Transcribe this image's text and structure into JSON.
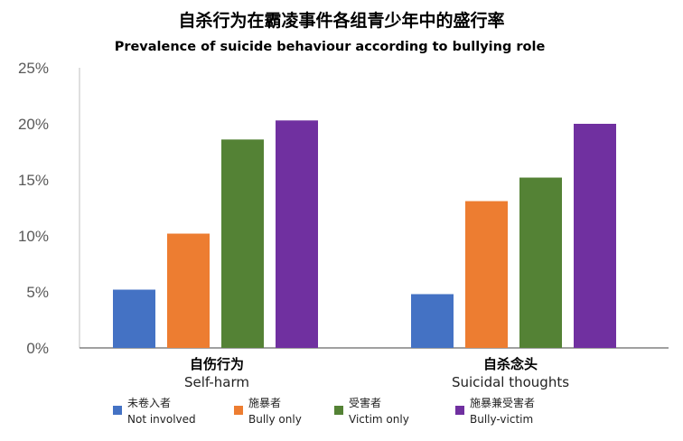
{
  "chart_data": {
    "type": "bar",
    "title": "自杀行为在霸凌事件各组青少年中的盛行率",
    "subtitle": "Prevalence of suicide behaviour according to bullying role",
    "categories": [
      {
        "zh": "自伤行为",
        "en": "Self-harm"
      },
      {
        "zh": "自杀念头",
        "en": "Suicidal thoughts"
      }
    ],
    "series": [
      {
        "zh": "未卷入者",
        "name": "Not involved",
        "color": "#4472C4",
        "values": [
          5.2,
          4.8
        ]
      },
      {
        "zh": "施暴者",
        "name": "Bully only",
        "color": "#ED7D31",
        "values": [
          10.2,
          13.1
        ]
      },
      {
        "zh": "受害者",
        "name": "Victim only",
        "color": "#548235",
        "values": [
          18.6,
          15.2
        ]
      },
      {
        "zh": "施暴兼受害者",
        "name": "Bully-victim",
        "color": "#7030A0",
        "values": [
          20.3,
          20.0
        ]
      }
    ],
    "yticks": [
      "0%",
      "5%",
      "10%",
      "15%",
      "20%",
      "25%"
    ],
    "ylim": [
      0,
      25
    ],
    "xlabel": "",
    "ylabel": "",
    "grid": false,
    "legend": "bottom"
  }
}
